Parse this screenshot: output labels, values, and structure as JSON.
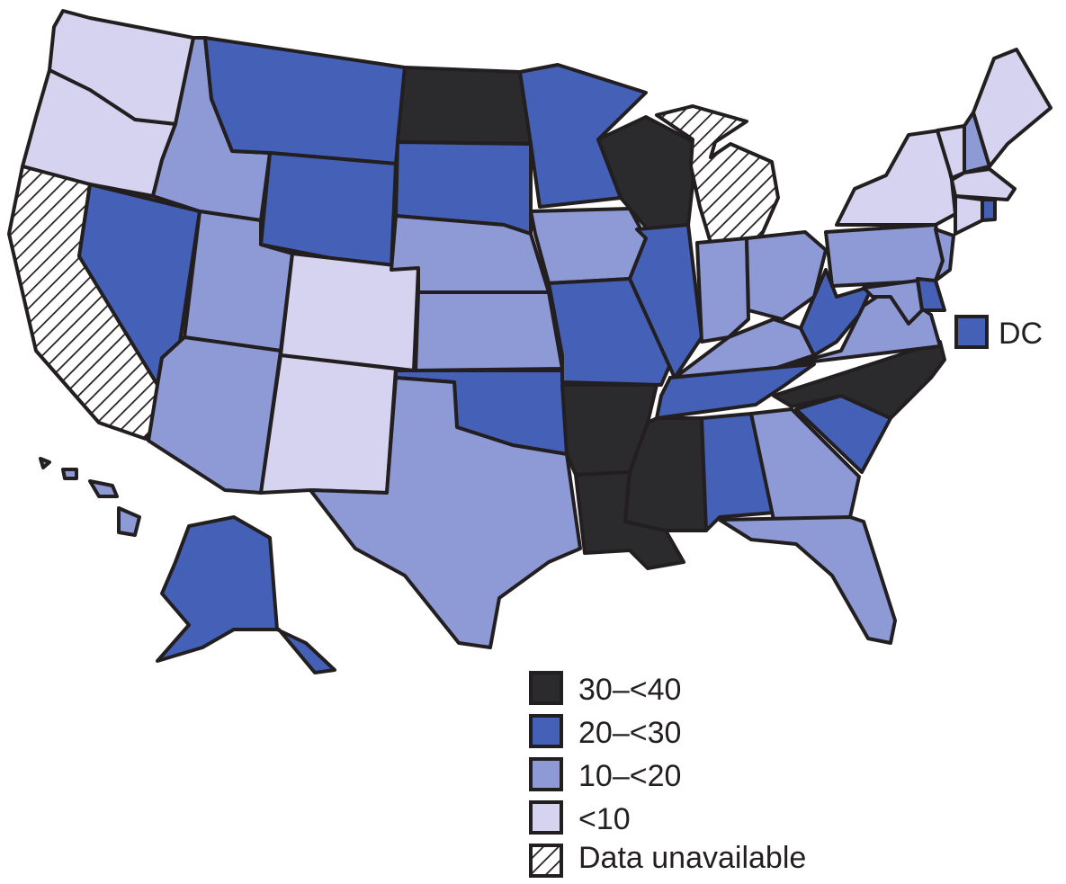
{
  "colors": {
    "c30_40": "#2b2a2c",
    "c20_30": "#4560b7",
    "c10_20": "#8e9ad6",
    "lt10": "#d5d3ef",
    "na_stroke": "#231f20",
    "na_bg": "#ffffff"
  },
  "dc_label": "DC",
  "legend": [
    {
      "label": "30–<40",
      "category": "c30_40"
    },
    {
      "label": "20–<30",
      "category": "c20_30"
    },
    {
      "label": "10–<20",
      "category": "c10_20"
    },
    {
      "label": "<10",
      "category": "lt10"
    },
    {
      "label": "Data unavailable",
      "category": "na"
    }
  ],
  "states": {
    "WA": "lt10",
    "OR": "lt10",
    "CA": "na",
    "NV": "c20_30",
    "ID": "c10_20",
    "MT": "c20_30",
    "WY": "c20_30",
    "UT": "c10_20",
    "AZ": "c10_20",
    "CO": "lt10",
    "NM": "lt10",
    "ND": "c30_40",
    "SD": "c20_30",
    "NE": "c10_20",
    "KS": "c10_20",
    "OK": "c20_30",
    "TX": "c10_20",
    "MN": "c20_30",
    "IA": "c10_20",
    "MO": "c20_30",
    "AR": "c30_40",
    "LA": "c30_40",
    "WI": "c30_40",
    "IL": "c20_30",
    "MI": "na",
    "IN": "c10_20",
    "OH": "c10_20",
    "KY": "c10_20",
    "TN": "c20_30",
    "MS": "c30_40",
    "AL": "c20_30",
    "GA": "c10_20",
    "FL": "c10_20",
    "SC": "c20_30",
    "NC": "c30_40",
    "VA": "c10_20",
    "WV": "c20_30",
    "PA": "c10_20",
    "NY": "lt10",
    "VT": "lt10",
    "NH": "c10_20",
    "ME": "lt10",
    "MA": "lt10",
    "RI": "c20_30",
    "CT": "lt10",
    "NJ": "c10_20",
    "DE": "c20_30",
    "MD": "c10_20",
    "AK": "c20_30",
    "HI": "c10_20",
    "DC": "c20_30"
  }
}
